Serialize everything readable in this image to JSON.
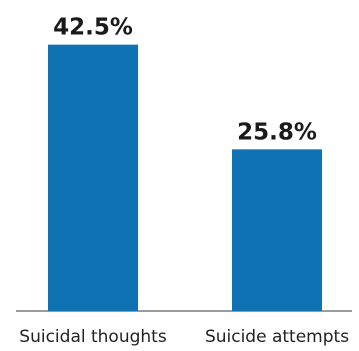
{
  "chart_data": {
    "type": "bar",
    "categories": [
      "Suicidal thoughts",
      "Suicide attempts"
    ],
    "values": [
      42.5,
      25.8
    ],
    "value_labels": [
      "42.5%",
      "25.8%"
    ],
    "ylim": [
      0,
      45
    ],
    "grid": false,
    "legend": "none",
    "bar_color": "#0f72b2",
    "baseline_color": "#7a7a7a"
  }
}
